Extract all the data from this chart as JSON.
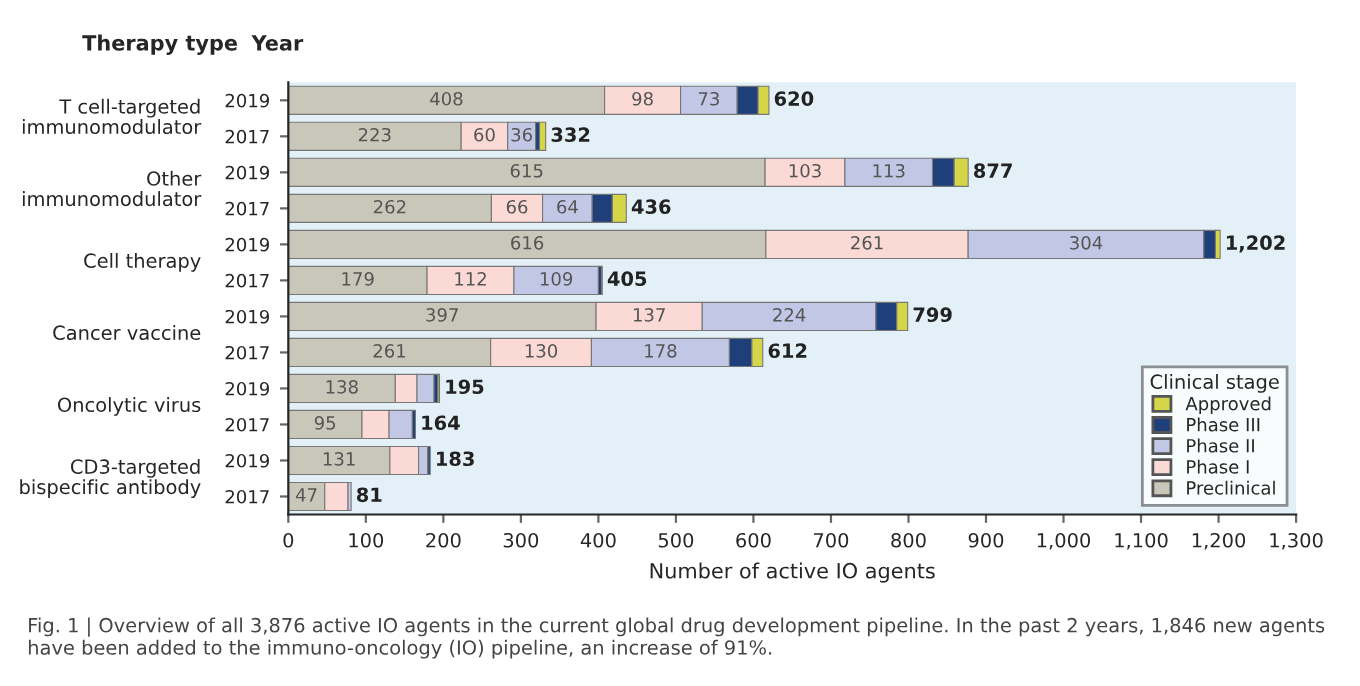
{
  "chart_data": {
    "type": "bar",
    "orientation": "horizontal",
    "stacked": true,
    "xlabel": "Number of active IO agents",
    "legend_title": "Clinical stage",
    "categories": [
      "2019",
      "2017",
      "2019",
      "2017",
      "2019",
      "2017",
      "2019",
      "2017",
      "2019",
      "2017",
      "2019",
      "2017"
    ],
    "series": [
      {
        "name": "Preclinical",
        "color": "#c9c7b9",
        "values": [
          408,
          223,
          615,
          262,
          616,
          179,
          397,
          261,
          138,
          95,
          131,
          47
        ],
        "value_labels": [
          "408",
          "223",
          "615",
          "262",
          "616",
          "179",
          "397",
          "261",
          "138",
          "95",
          "131",
          "47"
        ]
      },
      {
        "name": "Phase I",
        "color": "#fbdad6",
        "values": [
          98,
          60,
          103,
          66,
          261,
          112,
          137,
          130,
          28,
          35,
          37,
          30
        ],
        "value_labels": [
          "98",
          "60",
          "103",
          "66",
          "261",
          "112",
          "137",
          "130",
          null,
          null,
          null,
          null
        ]
      },
      {
        "name": "Phase II",
        "color": "#c2c7e6",
        "values": [
          73,
          36,
          113,
          64,
          304,
          109,
          224,
          178,
          22,
          30,
          12,
          4
        ],
        "value_labels": [
          "73",
          "36",
          "113",
          "64",
          "304",
          "109",
          "224",
          "178",
          null,
          null,
          null,
          null
        ]
      },
      {
        "name": "Phase III",
        "color": "#1f3f7a",
        "values": [
          27,
          5,
          28,
          26,
          15,
          4,
          27,
          29,
          5,
          4,
          3,
          null
        ]
      },
      {
        "name": "Approved",
        "color": "#d4d647",
        "values": [
          14,
          8,
          18,
          18,
          6,
          1,
          14,
          14,
          2,
          null,
          null,
          null
        ]
      }
    ],
    "totals": [
      "620",
      "332",
      "877",
      "436",
      "1,202",
      "405",
      "799",
      "612",
      "195",
      "164",
      "183",
      "81"
    ],
    "xlim": [
      0,
      1300
    ],
    "xticks": [
      0,
      100,
      200,
      300,
      400,
      500,
      600,
      700,
      800,
      900,
      {
        "value": 1000,
        "label": "1,000"
      },
      {
        "value": 1100,
        "label": "1,100"
      },
      {
        "value": 1200,
        "label": "1,200"
      },
      {
        "value": 1300,
        "label": "1,300"
      }
    ],
    "grid": false,
    "legend": "right",
    "annotations": [
      "Therapy type",
      "Year",
      "T cell-targeted\nimmunomodulator",
      "Other\nimmunomodulator",
      "Cell therapy",
      "Cancer vaccine",
      "Oncolytic virus",
      "CD3-targeted\nbispecific antibody",
      "Fig. 1 | Overview of all 3,876 active IO agents in the current global drug development pipeline. In the past 2 years, 1,846 new agents have been added to the immuno-oncology (IO) pipeline, an increase of 91%."
    ]
  }
}
